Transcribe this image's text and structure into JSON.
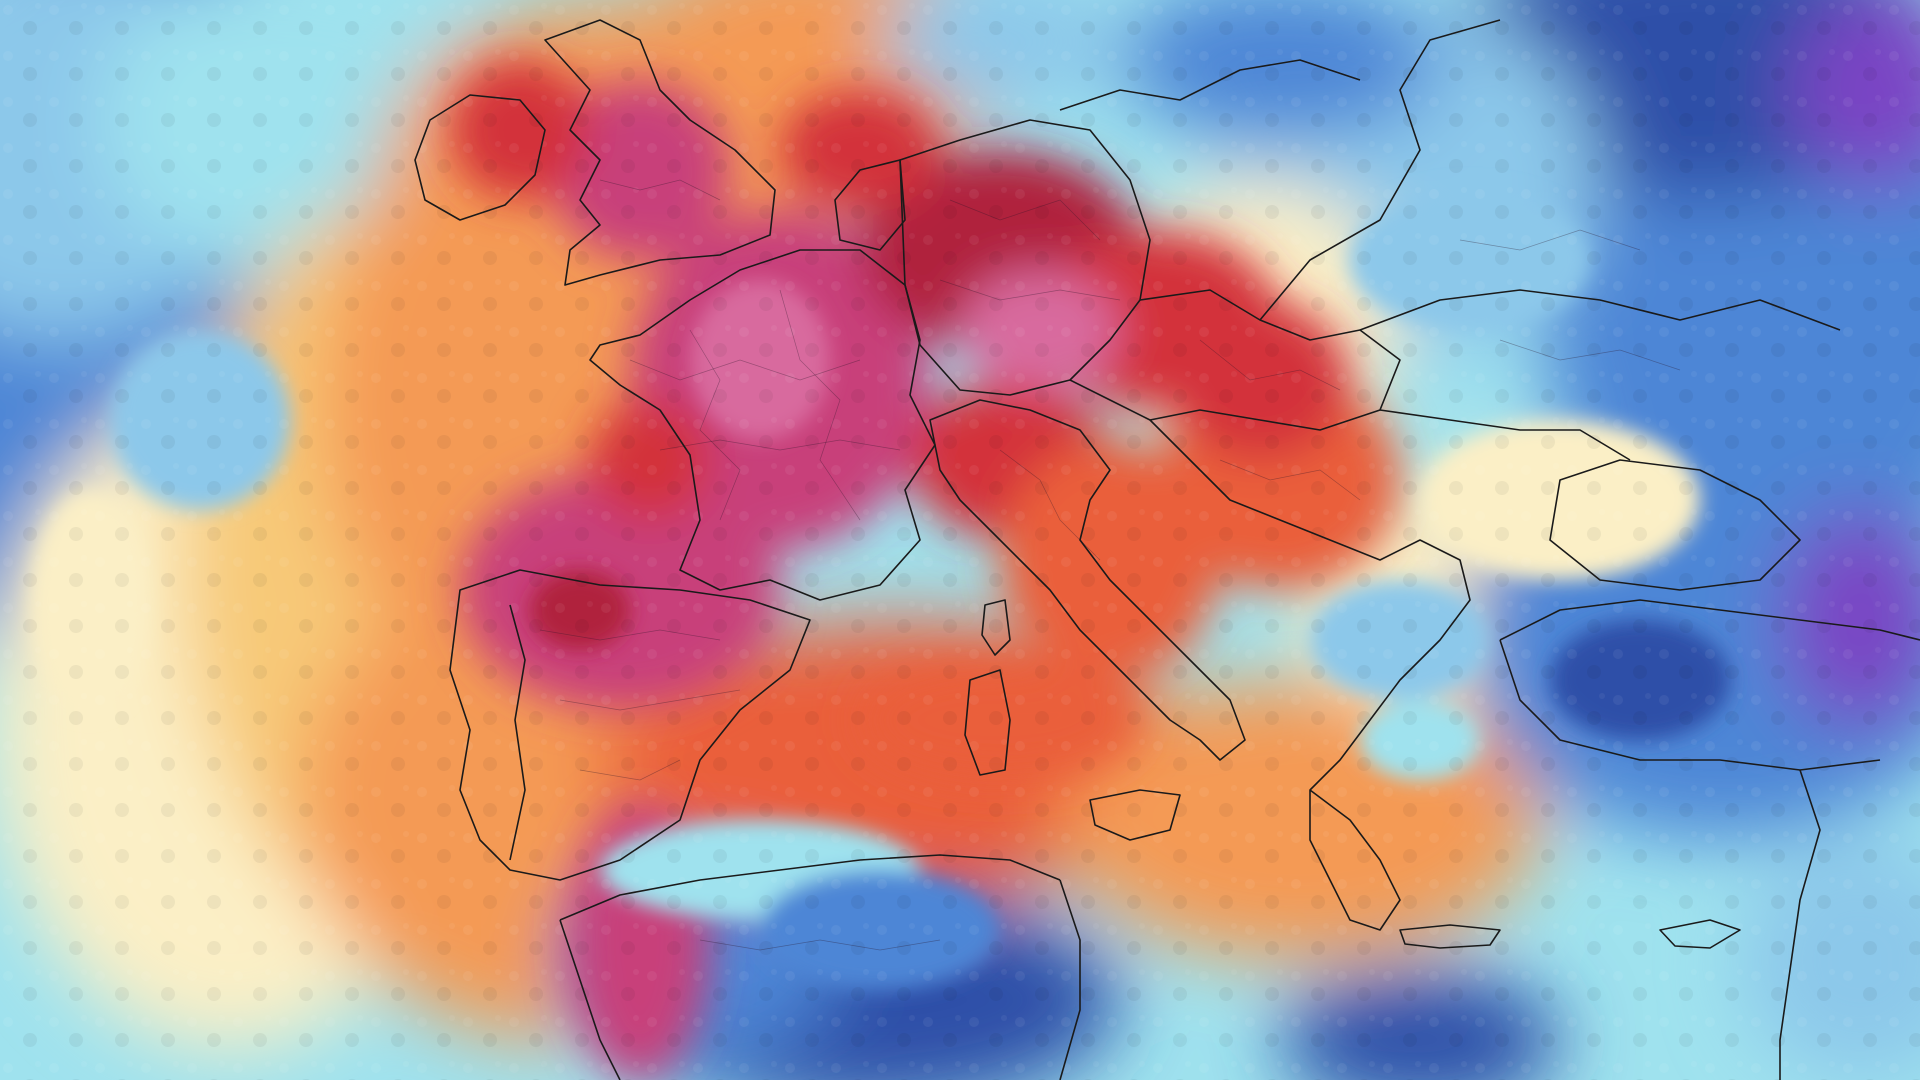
{
  "map": {
    "region": "Europe",
    "palette": {
      "deep_blue": "#2f4fa8",
      "blue": "#4d86d6",
      "light_blue": "#8cc8ea",
      "cyan": "#9fe2ee",
      "pale": "#fbefc6",
      "yellow_orange": "#f7c978",
      "orange": "#f49a55",
      "red_orange": "#ea5f3a",
      "red": "#d3313a",
      "dark_red": "#b0233d",
      "magenta": "#c8407a",
      "pink": "#d86a9e",
      "purple": "#7a44c4"
    }
  }
}
